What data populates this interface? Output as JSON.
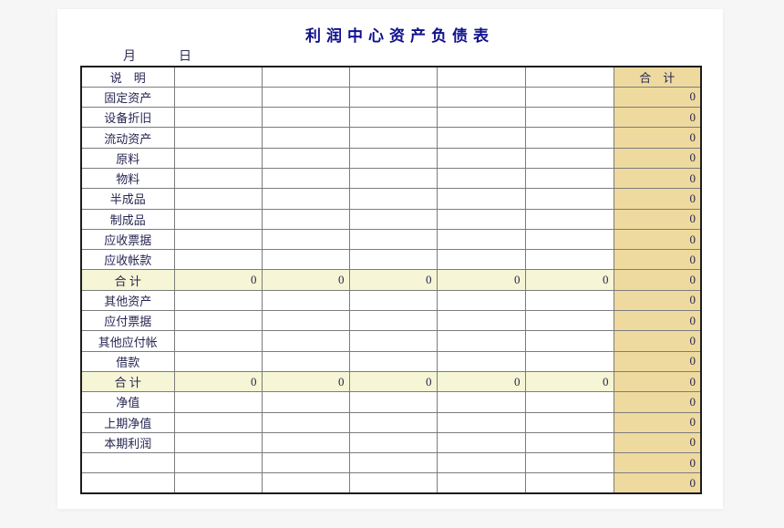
{
  "page": {
    "title": "利润中心资产负债表",
    "month_label": "月",
    "day_label": "日"
  },
  "table": {
    "header": {
      "description": "说　明",
      "total": "合　计"
    },
    "data_column_count": 5,
    "rows": [
      {
        "label": "固定资产",
        "type": "normal",
        "cells": [
          "",
          "",
          "",
          "",
          ""
        ],
        "total": "0"
      },
      {
        "label": "设备折旧",
        "type": "normal",
        "cells": [
          "",
          "",
          "",
          "",
          ""
        ],
        "total": "0"
      },
      {
        "label": "流动资产",
        "type": "normal",
        "cells": [
          "",
          "",
          "",
          "",
          ""
        ],
        "total": "0"
      },
      {
        "label": "原料",
        "type": "normal",
        "cells": [
          "",
          "",
          "",
          "",
          ""
        ],
        "total": "0"
      },
      {
        "label": "物料",
        "type": "normal",
        "cells": [
          "",
          "",
          "",
          "",
          ""
        ],
        "total": "0"
      },
      {
        "label": "半成品",
        "type": "normal",
        "cells": [
          "",
          "",
          "",
          "",
          ""
        ],
        "total": "0"
      },
      {
        "label": "制成品",
        "type": "normal",
        "cells": [
          "",
          "",
          "",
          "",
          ""
        ],
        "total": "0"
      },
      {
        "label": "应收票据",
        "type": "normal",
        "cells": [
          "",
          "",
          "",
          "",
          ""
        ],
        "total": "0"
      },
      {
        "label": "应收帐款",
        "type": "normal",
        "cells": [
          "",
          "",
          "",
          "",
          ""
        ],
        "total": "0"
      },
      {
        "label": "合 计",
        "type": "subtotal",
        "cells": [
          "0",
          "0",
          "0",
          "0",
          "0"
        ],
        "total": "0"
      },
      {
        "label": "其他资产",
        "type": "normal",
        "cells": [
          "",
          "",
          "",
          "",
          ""
        ],
        "total": "0"
      },
      {
        "label": "应付票据",
        "type": "normal",
        "cells": [
          "",
          "",
          "",
          "",
          ""
        ],
        "total": "0"
      },
      {
        "label": "其他应付帐",
        "type": "normal",
        "cells": [
          "",
          "",
          "",
          "",
          ""
        ],
        "total": "0"
      },
      {
        "label": "借款",
        "type": "normal",
        "cells": [
          "",
          "",
          "",
          "",
          ""
        ],
        "total": "0"
      },
      {
        "label": "合 计",
        "type": "subtotal",
        "cells": [
          "0",
          "0",
          "0",
          "0",
          "0"
        ],
        "total": "0"
      },
      {
        "label": "净值",
        "type": "normal",
        "cells": [
          "",
          "",
          "",
          "",
          ""
        ],
        "total": "0"
      },
      {
        "label": "上期净值",
        "type": "normal",
        "cells": [
          "",
          "",
          "",
          "",
          ""
        ],
        "total": "0"
      },
      {
        "label": "本期利润",
        "type": "normal",
        "cells": [
          "",
          "",
          "",
          "",
          ""
        ],
        "total": "0"
      },
      {
        "label": "",
        "type": "normal",
        "cells": [
          "",
          "",
          "",
          "",
          ""
        ],
        "total": "0"
      },
      {
        "label": "",
        "type": "normal",
        "cells": [
          "",
          "",
          "",
          "",
          ""
        ],
        "total": "0"
      }
    ]
  },
  "colors": {
    "canvas_bg": "#F6F6F7",
    "page_bg": "#FFFFFF",
    "title_text": "#10108E",
    "label_text": "#262653",
    "total_column_bg": "#EEDA9E",
    "subtotal_row_bg": "#F6F5D5",
    "grid_line": "#7C7C7C",
    "outer_border": "#1C1C1C"
  }
}
